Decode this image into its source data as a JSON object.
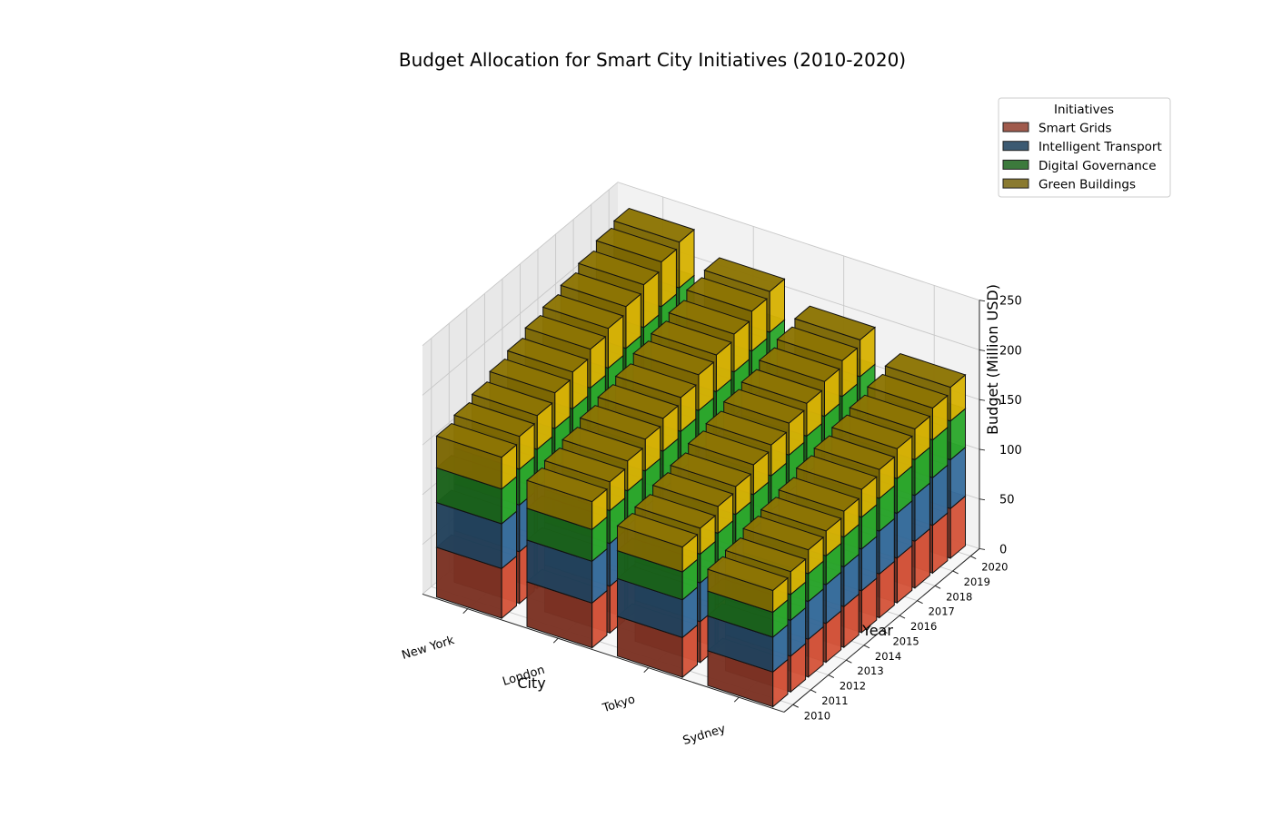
{
  "chart_data": {
    "type": "bar",
    "subtype": "3d-stacked-bar",
    "title": "Budget Allocation for Smart City Initiatives (2010-2020)",
    "xlabel": "City",
    "ylabel": "Year",
    "zlabel": "Budget (Million USD)",
    "cities": [
      "Sydney",
      "Tokyo",
      "London",
      "New York"
    ],
    "years": [
      "2010",
      "2011",
      "2012",
      "2013",
      "2014",
      "2015",
      "2016",
      "2017",
      "2018",
      "2019",
      "2020"
    ],
    "zticks": [
      "0",
      "50",
      "100",
      "150",
      "200",
      "250"
    ],
    "zlim": [
      0,
      250
    ],
    "grid": true,
    "legend": {
      "title": "Initiatives",
      "placement": "top-right"
    },
    "series": [
      {
        "name": "Smart Grids",
        "color": "#e05a3f",
        "values": [
          [
            35,
            36,
            38,
            39,
            41,
            42,
            44,
            45,
            47,
            48,
            50
          ],
          [
            40,
            41,
            43,
            45,
            46,
            48,
            50,
            51,
            53,
            55,
            57
          ],
          [
            45,
            47,
            48,
            50,
            52,
            54,
            56,
            57,
            59,
            61,
            63
          ],
          [
            50,
            52,
            54,
            56,
            58,
            60,
            62,
            64,
            66,
            68,
            70
          ]
        ]
      },
      {
        "name": "Intelligent Transport",
        "color": "#3d76a6",
        "values": [
          [
            35,
            36,
            38,
            39,
            40,
            42,
            43,
            45,
            46,
            48,
            49
          ],
          [
            38,
            39,
            41,
            42,
            44,
            45,
            47,
            49,
            50,
            52,
            53
          ],
          [
            42,
            43,
            45,
            47,
            48,
            50,
            52,
            53,
            55,
            57,
            58
          ],
          [
            45,
            47,
            48,
            50,
            52,
            54,
            55,
            57,
            59,
            61,
            62
          ]
        ]
      },
      {
        "name": "Digital Governance",
        "color": "#2fb12f",
        "values": [
          [
            25,
            26,
            28,
            29,
            30,
            32,
            33,
            35,
            36,
            38,
            39
          ],
          [
            28,
            29,
            31,
            32,
            34,
            35,
            37,
            38,
            40,
            41,
            43
          ],
          [
            32,
            33,
            35,
            36,
            38,
            39,
            41,
            43,
            44,
            46,
            47
          ],
          [
            35,
            36,
            38,
            40,
            41,
            43,
            45,
            46,
            48,
            50,
            51
          ]
        ]
      },
      {
        "name": "Green Buildings",
        "color": "#e2bc06",
        "values": [
          [
            22,
            23,
            24,
            25,
            26,
            28,
            29,
            30,
            31,
            32,
            34
          ],
          [
            25,
            26,
            27,
            28,
            30,
            31,
            32,
            33,
            35,
            36,
            37
          ],
          [
            28,
            29,
            30,
            32,
            33,
            34,
            36,
            37,
            38,
            40,
            41
          ],
          [
            32,
            33,
            34,
            36,
            37,
            39,
            40,
            42,
            43,
            45,
            46
          ]
        ]
      }
    ],
    "legend_swatches": [
      "#a05a4c",
      "#3c5a72",
      "#3c7a3c",
      "#8a7a30"
    ]
  }
}
